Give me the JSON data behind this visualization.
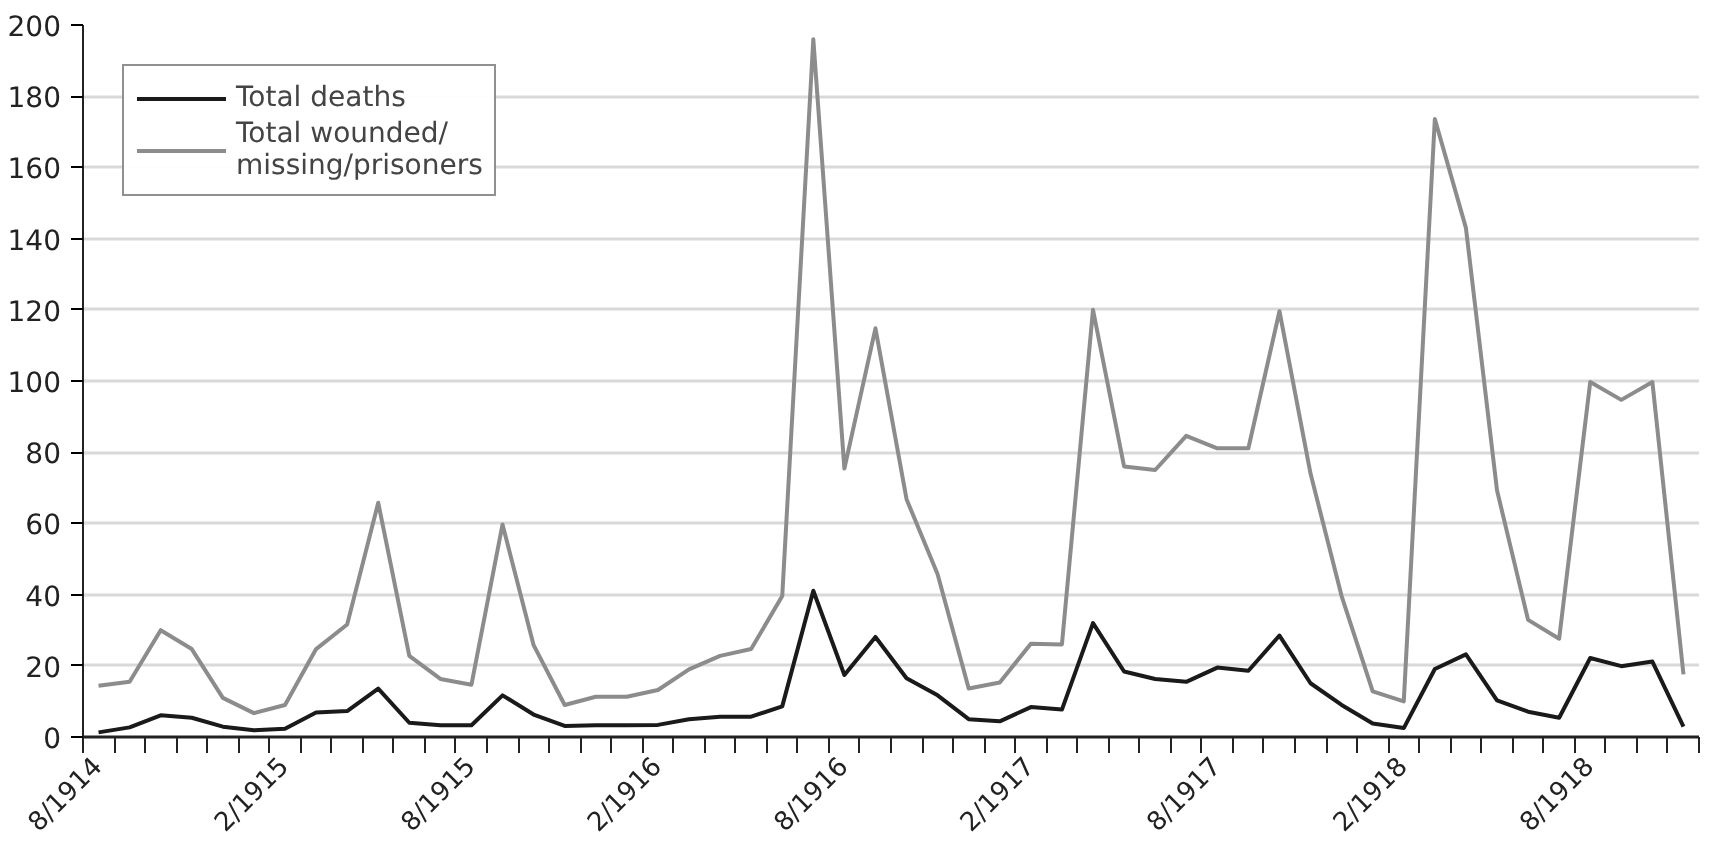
{
  "chart_data": {
    "type": "line",
    "categories": [
      "8/1914",
      null,
      null,
      null,
      null,
      null,
      "2/1915",
      null,
      null,
      null,
      null,
      null,
      "8/1915",
      null,
      null,
      null,
      null,
      null,
      "2/1916",
      null,
      null,
      null,
      null,
      null,
      "8/1916",
      null,
      null,
      null,
      null,
      null,
      "2/1917",
      null,
      null,
      null,
      null,
      null,
      "8/1917",
      null,
      null,
      null,
      null,
      null,
      "2/1918",
      null,
      null,
      null,
      null,
      null,
      "8/1918",
      null,
      null,
      null
    ],
    "series": [
      {
        "name": "Total deaths",
        "color": "#1a1a1a",
        "values": [
          1.3,
          2.7,
          6.1,
          5.4,
          2.9,
          1.9,
          2.3,
          6.9,
          7.3,
          13.6,
          4,
          3.3,
          3.3,
          11.7,
          6.3,
          3.1,
          3.3,
          3.3,
          3.4,
          5,
          5.7,
          5.7,
          8.6,
          41.1,
          17.4,
          28.1,
          16.5,
          11.7,
          5,
          4.4,
          8.4,
          7.7,
          32,
          18.4,
          16.3,
          15.5,
          19.5,
          18.6,
          28.5,
          15.1,
          9,
          3.8,
          2.5,
          19.1,
          23.2,
          10.3,
          7.1,
          5.4,
          22.2,
          19.9,
          21.2,
          2.9
        ]
      },
      {
        "name": "Total wounded/missing/prisoners",
        "color": "#8c8c8c",
        "values": [
          14.4,
          15.5,
          30,
          24.7,
          11,
          6.7,
          9,
          24.7,
          31.6,
          65.8,
          22.8,
          16.3,
          14.7,
          59.7,
          25.8,
          9,
          11.3,
          11.3,
          13.2,
          19,
          22.8,
          24.7,
          39.6,
          196,
          75.4,
          114.8,
          66.8,
          45.7,
          13.6,
          15.3,
          26.2,
          26,
          120,
          76,
          75,
          84.6,
          81.1,
          81.1,
          119.6,
          74,
          39.6,
          12.8,
          10,
          173.6,
          143,
          69.3,
          32.9,
          27.6,
          99.7,
          94.7,
          99.7,
          17.6
        ]
      }
    ],
    "ylim": [
      0,
      200
    ],
    "yticks": [
      0,
      20,
      40,
      60,
      80,
      100,
      120,
      140,
      160,
      180,
      200
    ],
    "grid": "y",
    "legend": "top left",
    "marker": "none",
    "line_style": "solid"
  }
}
